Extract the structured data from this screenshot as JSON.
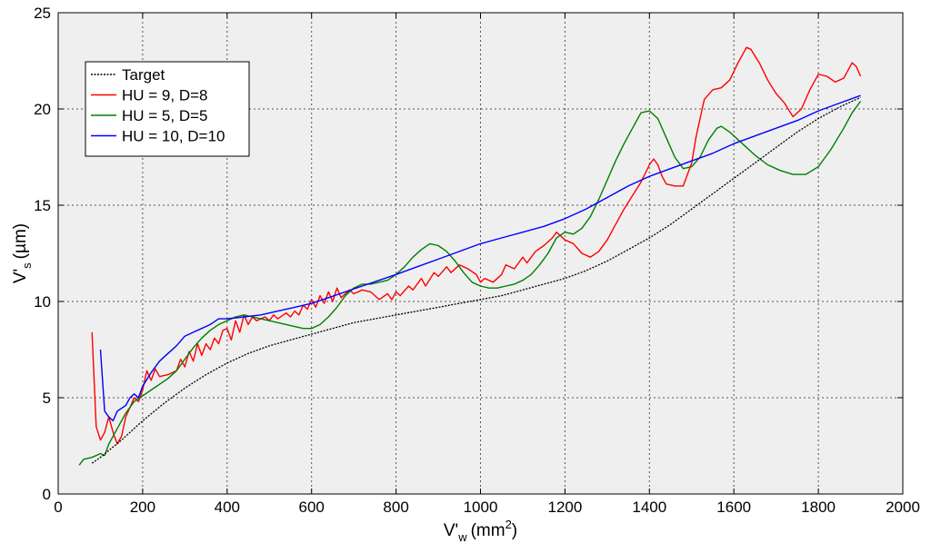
{
  "chart_data": {
    "type": "line",
    "xlabel": {
      "main": "V'",
      "sub": "w",
      "unit": "(mm",
      "sup": "2",
      "close": ")"
    },
    "ylabel": {
      "main": "V'",
      "sub": "s",
      "unit": "(µm)"
    },
    "xlim": [
      0,
      2000
    ],
    "ylim": [
      0,
      25
    ],
    "xticks": [
      0,
      200,
      400,
      600,
      800,
      1000,
      1200,
      1400,
      1600,
      1800,
      2000
    ],
    "yticks": [
      0,
      5,
      10,
      15,
      20,
      25
    ],
    "grid": true,
    "legend_position": "top-left",
    "background": "#efefef",
    "series": [
      {
        "name": "Target",
        "color": "#000000",
        "dashed": true,
        "points": [
          [
            80,
            1.6
          ],
          [
            100,
            1.9
          ],
          [
            150,
            2.8
          ],
          [
            200,
            3.8
          ],
          [
            250,
            4.7
          ],
          [
            300,
            5.5
          ],
          [
            350,
            6.2
          ],
          [
            400,
            6.8
          ],
          [
            450,
            7.3
          ],
          [
            500,
            7.7
          ],
          [
            550,
            8.0
          ],
          [
            600,
            8.3
          ],
          [
            650,
            8.6
          ],
          [
            700,
            8.9
          ],
          [
            750,
            9.1
          ],
          [
            800,
            9.3
          ],
          [
            850,
            9.5
          ],
          [
            900,
            9.7
          ],
          [
            950,
            9.9
          ],
          [
            1000,
            10.1
          ],
          [
            1050,
            10.3
          ],
          [
            1100,
            10.6
          ],
          [
            1150,
            10.9
          ],
          [
            1200,
            11.2
          ],
          [
            1250,
            11.6
          ],
          [
            1300,
            12.1
          ],
          [
            1350,
            12.7
          ],
          [
            1400,
            13.3
          ],
          [
            1450,
            14.0
          ],
          [
            1500,
            14.8
          ],
          [
            1550,
            15.6
          ],
          [
            1600,
            16.4
          ],
          [
            1650,
            17.2
          ],
          [
            1700,
            18.0
          ],
          [
            1750,
            18.8
          ],
          [
            1800,
            19.5
          ],
          [
            1850,
            20.1
          ],
          [
            1900,
            20.6
          ]
        ]
      },
      {
        "name": "HU = 9, D=8",
        "color": "#ff0000",
        "dashed": false,
        "points": [
          [
            80,
            8.4
          ],
          [
            90,
            3.5
          ],
          [
            100,
            2.8
          ],
          [
            110,
            3.2
          ],
          [
            120,
            4.0
          ],
          [
            130,
            3.2
          ],
          [
            140,
            2.6
          ],
          [
            150,
            3.0
          ],
          [
            160,
            4.0
          ],
          [
            170,
            4.5
          ],
          [
            180,
            5.0
          ],
          [
            190,
            4.8
          ],
          [
            200,
            5.4
          ],
          [
            210,
            6.4
          ],
          [
            220,
            5.9
          ],
          [
            230,
            6.5
          ],
          [
            240,
            6.1
          ],
          [
            260,
            6.2
          ],
          [
            280,
            6.4
          ],
          [
            290,
            7.0
          ],
          [
            300,
            6.6
          ],
          [
            310,
            7.4
          ],
          [
            320,
            6.9
          ],
          [
            330,
            7.8
          ],
          [
            340,
            7.2
          ],
          [
            350,
            7.8
          ],
          [
            360,
            7.5
          ],
          [
            370,
            8.1
          ],
          [
            380,
            7.8
          ],
          [
            390,
            8.5
          ],
          [
            400,
            8.6
          ],
          [
            410,
            8.0
          ],
          [
            420,
            9.0
          ],
          [
            430,
            8.4
          ],
          [
            440,
            9.3
          ],
          [
            450,
            8.8
          ],
          [
            460,
            9.2
          ],
          [
            470,
            9.0
          ],
          [
            490,
            9.2
          ],
          [
            500,
            9.0
          ],
          [
            510,
            9.3
          ],
          [
            520,
            9.1
          ],
          [
            540,
            9.4
          ],
          [
            550,
            9.2
          ],
          [
            560,
            9.5
          ],
          [
            570,
            9.3
          ],
          [
            580,
            9.8
          ],
          [
            590,
            9.6
          ],
          [
            600,
            10.1
          ],
          [
            610,
            9.7
          ],
          [
            620,
            10.3
          ],
          [
            630,
            9.9
          ],
          [
            640,
            10.5
          ],
          [
            650,
            10.0
          ],
          [
            660,
            10.7
          ],
          [
            670,
            10.2
          ],
          [
            690,
            10.6
          ],
          [
            700,
            10.4
          ],
          [
            720,
            10.6
          ],
          [
            740,
            10.5
          ],
          [
            760,
            10.1
          ],
          [
            780,
            10.4
          ],
          [
            790,
            10.1
          ],
          [
            800,
            10.5
          ],
          [
            810,
            10.3
          ],
          [
            830,
            10.8
          ],
          [
            840,
            10.6
          ],
          [
            860,
            11.2
          ],
          [
            870,
            10.8
          ],
          [
            890,
            11.5
          ],
          [
            900,
            11.3
          ],
          [
            920,
            11.8
          ],
          [
            930,
            11.5
          ],
          [
            950,
            11.9
          ],
          [
            970,
            11.7
          ],
          [
            990,
            11.4
          ],
          [
            1000,
            11.0
          ],
          [
            1010,
            11.2
          ],
          [
            1030,
            11.0
          ],
          [
            1050,
            11.4
          ],
          [
            1060,
            11.9
          ],
          [
            1080,
            11.7
          ],
          [
            1100,
            12.3
          ],
          [
            1110,
            12.0
          ],
          [
            1130,
            12.6
          ],
          [
            1150,
            12.9
          ],
          [
            1170,
            13.3
          ],
          [
            1180,
            13.6
          ],
          [
            1200,
            13.2
          ],
          [
            1220,
            13.0
          ],
          [
            1240,
            12.5
          ],
          [
            1260,
            12.3
          ],
          [
            1280,
            12.6
          ],
          [
            1300,
            13.2
          ],
          [
            1320,
            14.0
          ],
          [
            1340,
            14.8
          ],
          [
            1360,
            15.5
          ],
          [
            1380,
            16.2
          ],
          [
            1400,
            17.1
          ],
          [
            1410,
            17.4
          ],
          [
            1420,
            17.1
          ],
          [
            1430,
            16.5
          ],
          [
            1440,
            16.1
          ],
          [
            1460,
            16.0
          ],
          [
            1480,
            16.0
          ],
          [
            1500,
            17.2
          ],
          [
            1510,
            18.5
          ],
          [
            1520,
            19.5
          ],
          [
            1530,
            20.5
          ],
          [
            1550,
            21.0
          ],
          [
            1570,
            21.1
          ],
          [
            1590,
            21.5
          ],
          [
            1610,
            22.4
          ],
          [
            1630,
            23.2
          ],
          [
            1640,
            23.1
          ],
          [
            1660,
            22.4
          ],
          [
            1680,
            21.5
          ],
          [
            1700,
            20.8
          ],
          [
            1720,
            20.3
          ],
          [
            1740,
            19.6
          ],
          [
            1760,
            20.0
          ],
          [
            1780,
            21.0
          ],
          [
            1800,
            21.8
          ],
          [
            1820,
            21.7
          ],
          [
            1840,
            21.4
          ],
          [
            1860,
            21.6
          ],
          [
            1880,
            22.4
          ],
          [
            1890,
            22.2
          ],
          [
            1900,
            21.7
          ]
        ]
      },
      {
        "name": "HU = 5,   D=5",
        "color": "#007f00",
        "dashed": false,
        "points": [
          [
            50,
            1.5
          ],
          [
            60,
            1.8
          ],
          [
            80,
            1.9
          ],
          [
            100,
            2.1
          ],
          [
            110,
            2.0
          ],
          [
            120,
            2.6
          ],
          [
            140,
            3.4
          ],
          [
            160,
            4.2
          ],
          [
            180,
            4.8
          ],
          [
            200,
            5.1
          ],
          [
            220,
            5.4
          ],
          [
            240,
            5.7
          ],
          [
            260,
            6.0
          ],
          [
            280,
            6.4
          ],
          [
            300,
            7.0
          ],
          [
            320,
            7.6
          ],
          [
            340,
            8.1
          ],
          [
            360,
            8.5
          ],
          [
            380,
            8.8
          ],
          [
            400,
            9.0
          ],
          [
            420,
            9.2
          ],
          [
            440,
            9.3
          ],
          [
            460,
            9.2
          ],
          [
            480,
            9.1
          ],
          [
            500,
            9.0
          ],
          [
            520,
            8.9
          ],
          [
            540,
            8.8
          ],
          [
            560,
            8.7
          ],
          [
            580,
            8.6
          ],
          [
            600,
            8.6
          ],
          [
            620,
            8.8
          ],
          [
            640,
            9.2
          ],
          [
            660,
            9.7
          ],
          [
            680,
            10.3
          ],
          [
            700,
            10.7
          ],
          [
            720,
            10.9
          ],
          [
            740,
            10.9
          ],
          [
            760,
            11.0
          ],
          [
            780,
            11.1
          ],
          [
            800,
            11.4
          ],
          [
            820,
            11.8
          ],
          [
            840,
            12.3
          ],
          [
            860,
            12.7
          ],
          [
            880,
            13.0
          ],
          [
            900,
            12.9
          ],
          [
            920,
            12.6
          ],
          [
            940,
            12.1
          ],
          [
            960,
            11.5
          ],
          [
            980,
            11.0
          ],
          [
            1000,
            10.8
          ],
          [
            1020,
            10.7
          ],
          [
            1040,
            10.7
          ],
          [
            1060,
            10.8
          ],
          [
            1080,
            10.9
          ],
          [
            1100,
            11.1
          ],
          [
            1120,
            11.4
          ],
          [
            1140,
            11.9
          ],
          [
            1160,
            12.5
          ],
          [
            1180,
            13.3
          ],
          [
            1200,
            13.6
          ],
          [
            1220,
            13.5
          ],
          [
            1240,
            13.8
          ],
          [
            1260,
            14.4
          ],
          [
            1280,
            15.3
          ],
          [
            1300,
            16.3
          ],
          [
            1320,
            17.3
          ],
          [
            1340,
            18.2
          ],
          [
            1360,
            19.0
          ],
          [
            1380,
            19.8
          ],
          [
            1400,
            19.9
          ],
          [
            1420,
            19.5
          ],
          [
            1440,
            18.5
          ],
          [
            1460,
            17.5
          ],
          [
            1480,
            16.9
          ],
          [
            1500,
            17.0
          ],
          [
            1520,
            17.5
          ],
          [
            1540,
            18.4
          ],
          [
            1560,
            19.0
          ],
          [
            1570,
            19.1
          ],
          [
            1590,
            18.8
          ],
          [
            1620,
            18.2
          ],
          [
            1650,
            17.6
          ],
          [
            1680,
            17.1
          ],
          [
            1710,
            16.8
          ],
          [
            1740,
            16.6
          ],
          [
            1770,
            16.6
          ],
          [
            1800,
            17.0
          ],
          [
            1830,
            17.9
          ],
          [
            1860,
            19.0
          ],
          [
            1880,
            19.8
          ],
          [
            1900,
            20.4
          ]
        ]
      },
      {
        "name": "HU = 10, D=10",
        "color": "#0000ff",
        "dashed": false,
        "points": [
          [
            100,
            7.5
          ],
          [
            110,
            4.3
          ],
          [
            120,
            4.0
          ],
          [
            130,
            3.8
          ],
          [
            140,
            4.3
          ],
          [
            160,
            4.6
          ],
          [
            170,
            5.0
          ],
          [
            180,
            5.2
          ],
          [
            190,
            5.0
          ],
          [
            200,
            5.6
          ],
          [
            220,
            6.3
          ],
          [
            240,
            6.9
          ],
          [
            260,
            7.3
          ],
          [
            280,
            7.7
          ],
          [
            300,
            8.2
          ],
          [
            320,
            8.4
          ],
          [
            340,
            8.6
          ],
          [
            360,
            8.8
          ],
          [
            380,
            9.1
          ],
          [
            400,
            9.1
          ],
          [
            440,
            9.2
          ],
          [
            480,
            9.3
          ],
          [
            520,
            9.5
          ],
          [
            560,
            9.7
          ],
          [
            600,
            9.9
          ],
          [
            640,
            10.2
          ],
          [
            680,
            10.5
          ],
          [
            720,
            10.8
          ],
          [
            760,
            11.1
          ],
          [
            800,
            11.4
          ],
          [
            850,
            11.8
          ],
          [
            900,
            12.2
          ],
          [
            950,
            12.6
          ],
          [
            1000,
            13.0
          ],
          [
            1050,
            13.3
          ],
          [
            1100,
            13.6
          ],
          [
            1150,
            13.9
          ],
          [
            1200,
            14.3
          ],
          [
            1250,
            14.8
          ],
          [
            1300,
            15.4
          ],
          [
            1350,
            16.0
          ],
          [
            1400,
            16.5
          ],
          [
            1450,
            16.9
          ],
          [
            1500,
            17.3
          ],
          [
            1550,
            17.7
          ],
          [
            1600,
            18.2
          ],
          [
            1650,
            18.6
          ],
          [
            1700,
            19.0
          ],
          [
            1750,
            19.4
          ],
          [
            1800,
            19.9
          ],
          [
            1850,
            20.3
          ],
          [
            1900,
            20.7
          ]
        ]
      }
    ]
  }
}
